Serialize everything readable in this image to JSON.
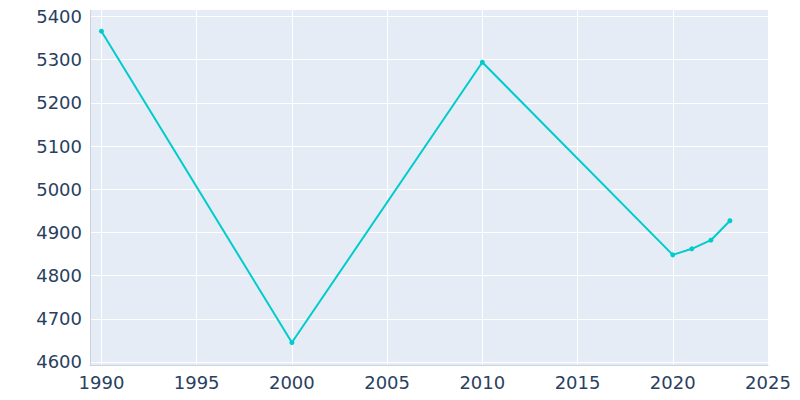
{
  "chart_data": {
    "type": "line",
    "x": [
      1990,
      2000,
      2010,
      2020,
      2021,
      2022,
      2023
    ],
    "values": [
      5366,
      4645,
      5294,
      4848,
      4862,
      4882,
      4927
    ],
    "color": "#00cccc",
    "marker": "circle",
    "xlim": [
      1989.4,
      2025
    ],
    "xticks": [
      1990,
      1995,
      2000,
      2005,
      2010,
      2015,
      2020,
      2025
    ],
    "ylim": [
      4593,
      5415
    ],
    "yticks": [
      4600,
      4700,
      4800,
      4900,
      5000,
      5100,
      5200,
      5300,
      5400
    ],
    "grid": true
  }
}
